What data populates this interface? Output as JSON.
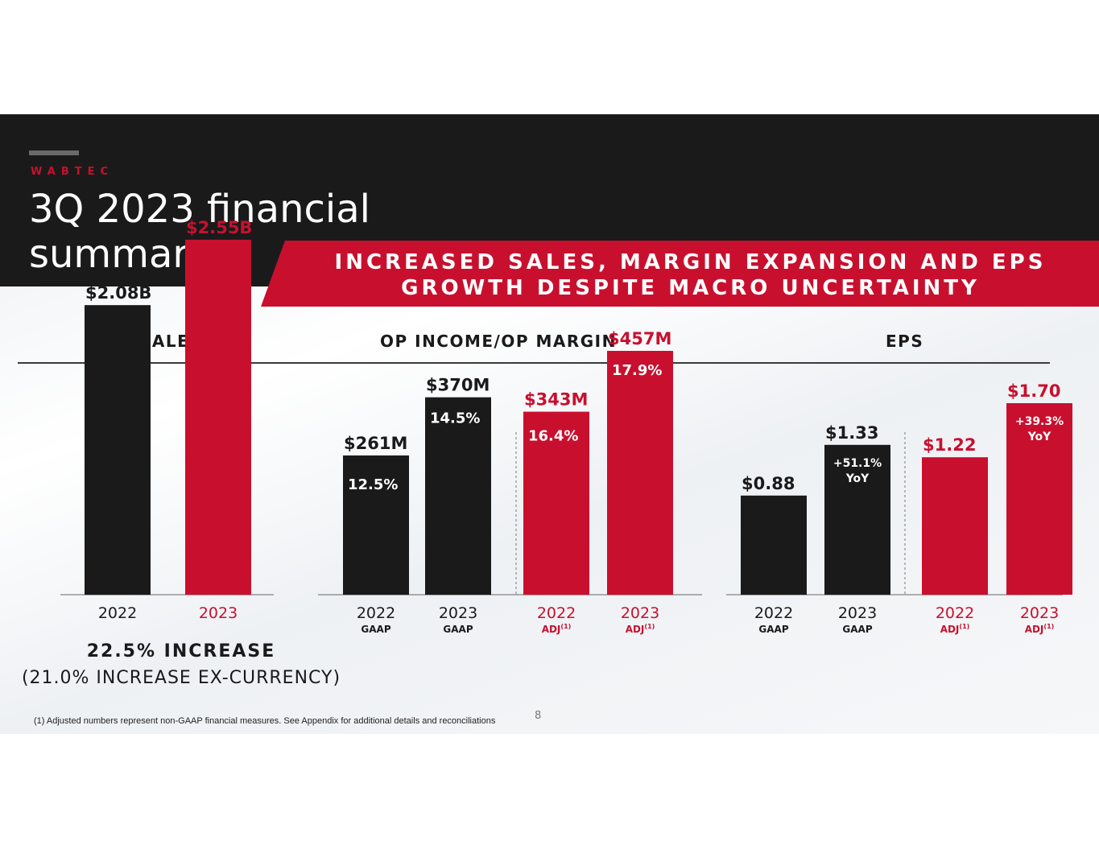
{
  "brand": "WABTEC",
  "title_line1": "3Q 2023 financial",
  "title_line2": "summary",
  "banner_line1": "INCREASED SALES, MARGIN EXPANSION AND EPS",
  "banner_line2": "GROWTH DESPITE MACRO UNCERTAINTY",
  "sections": {
    "sales": "SALES",
    "op": "OP INCOME/OP MARGIN",
    "eps": "EPS"
  },
  "sales_increase": "22.5% INCREASE",
  "sales_increase_ex": "(21.0% INCREASE EX-CURRENCY)",
  "footnote": "(1)   Adjusted numbers represent non-GAAP financial measures.  See Appendix for additional details and reconciliations",
  "page_number": "8",
  "colors": {
    "dark": "#1a1a1a",
    "red": "#c8102e"
  },
  "chart_data": [
    {
      "type": "bar",
      "title": "SALES",
      "categories": [
        "2022",
        "2023"
      ],
      "values": [
        2.08,
        2.55
      ],
      "unit": "B",
      "data_labels": [
        "$2.08B",
        "$2.55B"
      ],
      "colors": [
        "dark",
        "red"
      ]
    },
    {
      "type": "bar",
      "title": "OP INCOME/OP MARGIN",
      "categories": [
        "2022",
        "2023",
        "2022",
        "2023"
      ],
      "sublabels": [
        "GAAP",
        "GAAP",
        "ADJ",
        "ADJ"
      ],
      "sublabel_sup": [
        "",
        "",
        "(1)",
        "(1)"
      ],
      "values": [
        261,
        370,
        343,
        457
      ],
      "unit": "M",
      "data_labels": [
        "$261M",
        "$370M",
        "$343M",
        "$457M"
      ],
      "margins": [
        "12.5%",
        "14.5%",
        "16.4%",
        "17.9%"
      ],
      "colors": [
        "dark",
        "dark",
        "red",
        "red"
      ]
    },
    {
      "type": "bar",
      "title": "EPS",
      "categories": [
        "2022",
        "2023",
        "2022",
        "2023"
      ],
      "sublabels": [
        "GAAP",
        "GAAP",
        "ADJ",
        "ADJ"
      ],
      "sublabel_sup": [
        "",
        "",
        "(1)",
        "(1)"
      ],
      "values": [
        0.88,
        1.33,
        1.22,
        1.7
      ],
      "data_labels": [
        "$0.88",
        "$1.33",
        "$1.22",
        "$1.70"
      ],
      "yoy": [
        "",
        "+51.1%|YoY",
        "",
        "+39.3%|YoY"
      ],
      "colors": [
        "dark",
        "dark",
        "red",
        "red"
      ]
    }
  ]
}
